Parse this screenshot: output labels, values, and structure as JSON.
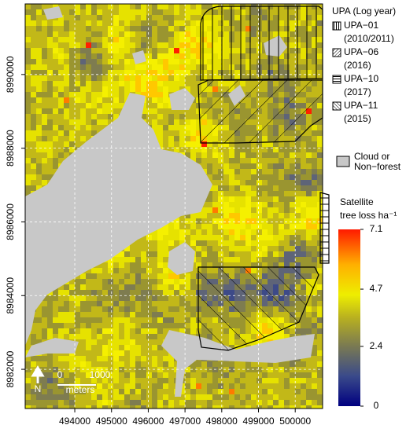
{
  "map": {
    "x_axis": {
      "lim": [
        492650,
        500745
      ],
      "ticks": [
        494000,
        495000,
        496000,
        497000,
        498000,
        499000,
        500000
      ]
    },
    "y_axis": {
      "lim": [
        8980936,
        8991915
      ],
      "ticks": [
        8982000,
        8984000,
        8986000,
        8988000,
        8990000
      ]
    },
    "legend": {
      "title": "UPA (Log year)",
      "items": [
        {
          "name": "UPA−01",
          "years": "(2010/2011)"
        },
        {
          "name": "UPA−06",
          "years": "(2016)"
        },
        {
          "name": "UPA−10",
          "years": "(2017)"
        },
        {
          "name": "UPA−11",
          "years": "(2015)"
        }
      ]
    },
    "cloud": {
      "label": [
        "Cloud or",
        "Non−forest"
      ]
    },
    "colorbar": {
      "title": [
        "Satellite",
        "tree loss ha⁻¹"
      ],
      "lim": [
        0,
        7.1
      ],
      "ticks": [
        0,
        2.4,
        4.7,
        7.1
      ]
    },
    "scale_bar": {
      "start": "0",
      "end": "1000",
      "unit": "meters"
    },
    "north": "N"
  }
}
